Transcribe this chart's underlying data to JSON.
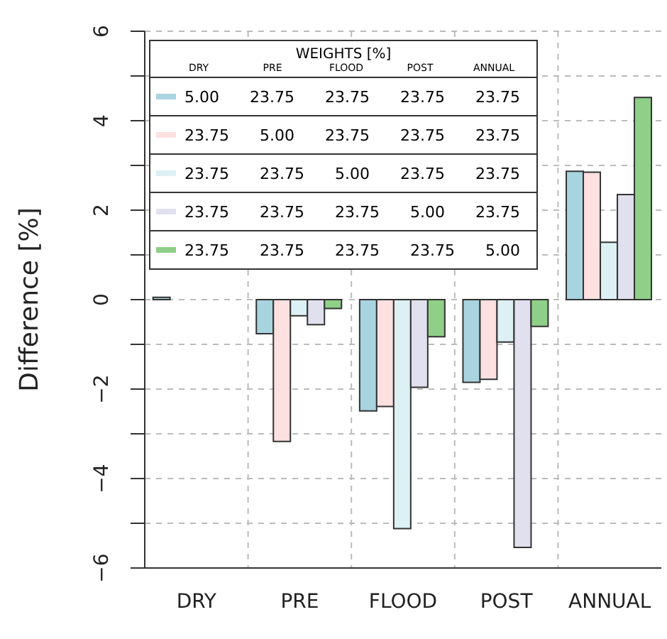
{
  "chart_data": {
    "type": "bar",
    "ylabel": "Difference  [%]",
    "legend_title": "WEIGHTS  [%]",
    "categories": [
      "DRY",
      "PRE",
      "FLOOD",
      "POST",
      "ANNUAL"
    ],
    "series": [
      {
        "name": "5.00 23.75 23.75 23.75 23.75",
        "color": "#a8d4e0",
        "values": [
          0.05,
          -0.76,
          -2.49,
          -1.85,
          2.87
        ]
      },
      {
        "name": "23.75 5.00 23.75 23.75 23.75",
        "color": "#fde0e0",
        "values": [
          null,
          -3.17,
          -2.39,
          -1.78,
          2.85
        ]
      },
      {
        "name": "23.75 23.75 5.00 23.75 23.75",
        "color": "#ddf1f5",
        "values": [
          null,
          -0.36,
          -5.12,
          -0.95,
          1.28
        ]
      },
      {
        "name": "23.75 23.75 23.75 5.00 23.75",
        "color": "#e0e0ef",
        "values": [
          null,
          -0.56,
          -1.96,
          -5.54,
          2.35
        ]
      },
      {
        "name": "23.75 23.75 23.75 23.75 5.00",
        "color": "#8fcf88",
        "values": [
          null,
          -0.2,
          -0.83,
          -0.6,
          4.52
        ]
      }
    ],
    "ylim": [
      -6,
      6
    ],
    "yticks": [
      -6,
      {
        "value": -5,
        "label": null
      },
      -4,
      {
        "value": -3,
        "label": null
      },
      -2,
      {
        "value": -1,
        "label": null
      },
      0,
      {
        "value": 1,
        "label": null
      },
      2,
      {
        "value": 3,
        "label": null
      },
      4,
      {
        "value": 5,
        "label": null
      },
      6
    ],
    "grid": true,
    "legend": "top left"
  }
}
